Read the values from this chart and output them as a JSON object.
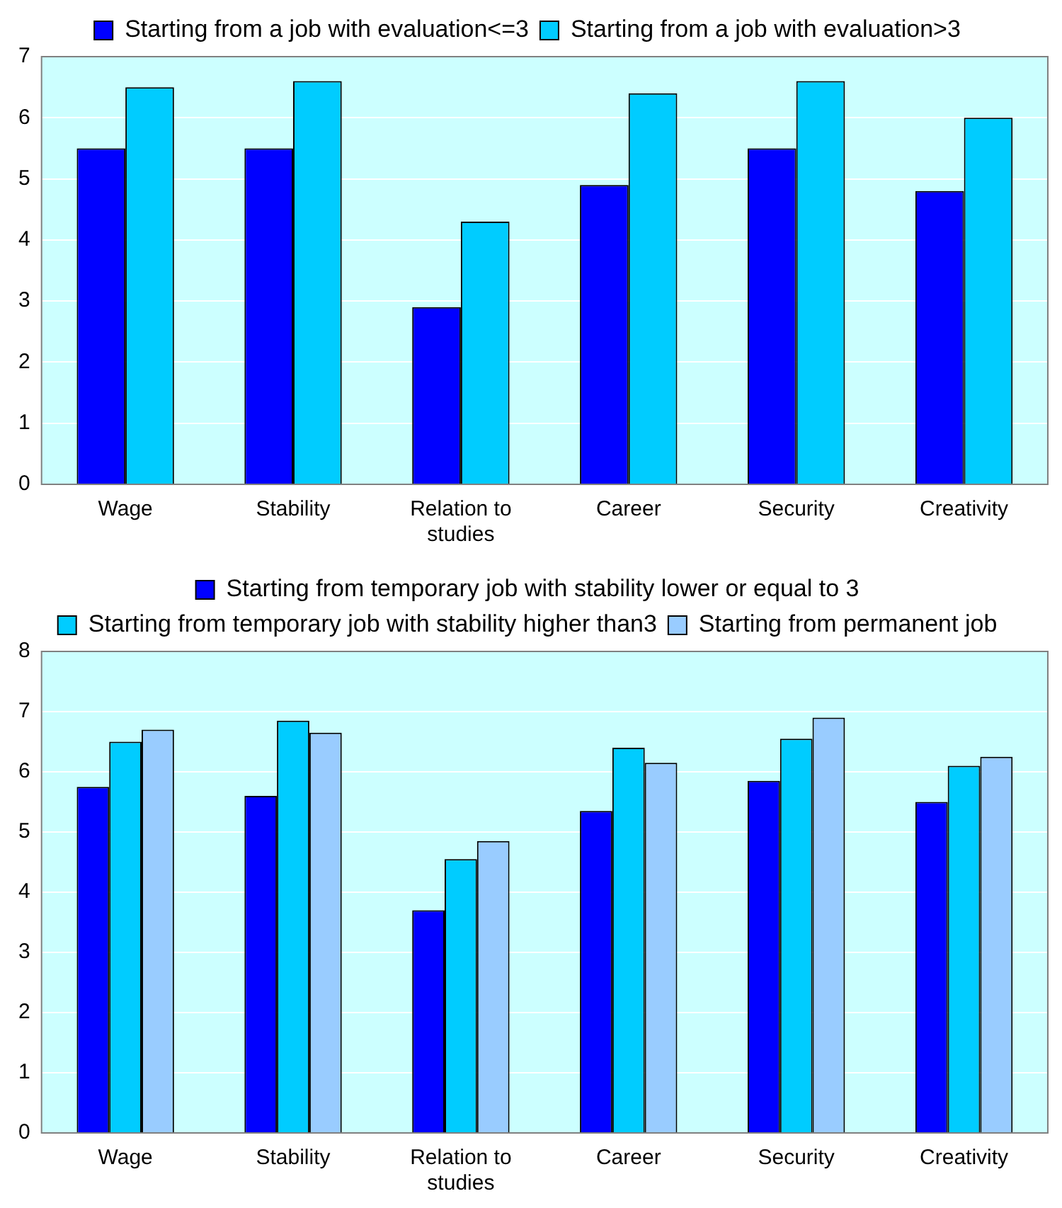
{
  "chart_data": [
    {
      "type": "bar",
      "categories": [
        "Wage",
        "Stability",
        "Relation to studies",
        "Career",
        "Security",
        "Creativity"
      ],
      "series": [
        {
          "name": "Starting from a job with evaluation<=3",
          "color": "#0000ff",
          "values": [
            5.5,
            5.5,
            2.9,
            4.9,
            5.5,
            4.8
          ]
        },
        {
          "name": "Starting from a job with evaluation>3",
          "color": "#00ccff",
          "values": [
            6.5,
            6.6,
            4.3,
            6.4,
            6.6,
            6.0
          ]
        }
      ],
      "ylim": [
        0,
        7
      ],
      "yticks": [
        0,
        1,
        2,
        3,
        4,
        5,
        6,
        7
      ],
      "grid": "y",
      "legend": "top"
    },
    {
      "type": "bar",
      "categories": [
        "Wage",
        "Stability",
        "Relation to studies",
        "Career",
        "Security",
        "Creativity"
      ],
      "series": [
        {
          "name": "Starting from temporary job with stability lower or equal to 3",
          "color": "#0000ff",
          "values": [
            5.75,
            5.6,
            3.7,
            5.35,
            5.85,
            5.5
          ]
        },
        {
          "name": "Starting from temporary job with stability higher than3",
          "color": "#00ccff",
          "values": [
            6.5,
            6.85,
            4.55,
            6.4,
            6.55,
            6.1
          ]
        },
        {
          "name": "Starting from permanent job",
          "color": "#99ccff",
          "values": [
            6.7,
            6.65,
            4.85,
            6.15,
            6.9,
            6.25
          ]
        }
      ],
      "ylim": [
        0,
        8
      ],
      "yticks": [
        0,
        1,
        2,
        3,
        4,
        5,
        6,
        7,
        8
      ],
      "grid": "y",
      "legend": "top"
    }
  ]
}
